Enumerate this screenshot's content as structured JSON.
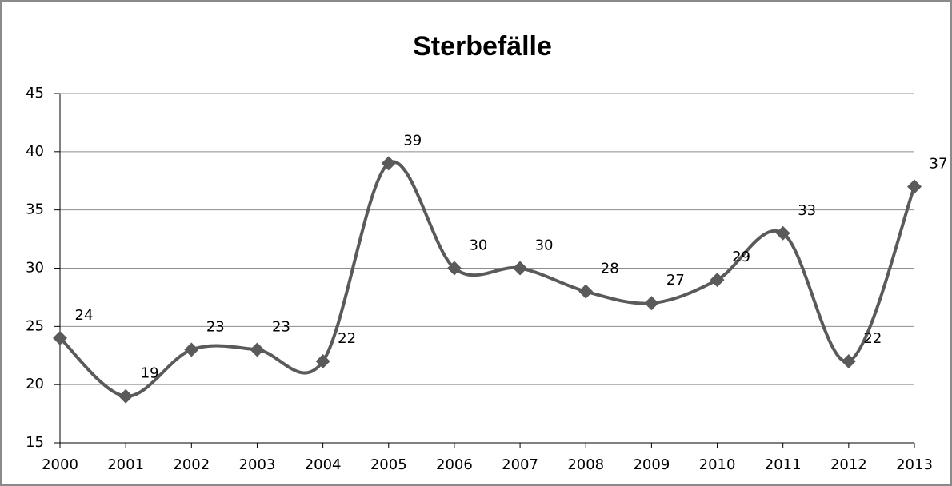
{
  "chart_data": {
    "type": "line",
    "title": "Sterbefälle",
    "categories": [
      "2000",
      "2001",
      "2002",
      "2003",
      "2004",
      "2005",
      "2006",
      "2007",
      "2008",
      "2009",
      "2010",
      "2011",
      "2012",
      "2013"
    ],
    "values": [
      24,
      19,
      23,
      23,
      22,
      39,
      30,
      30,
      28,
      27,
      29,
      33,
      22,
      37
    ],
    "color": "#5a5a5a",
    "smooth": true,
    "ylim": [
      15,
      45
    ],
    "yticks": [
      15,
      20,
      25,
      30,
      35,
      40,
      45
    ],
    "grid": true
  }
}
